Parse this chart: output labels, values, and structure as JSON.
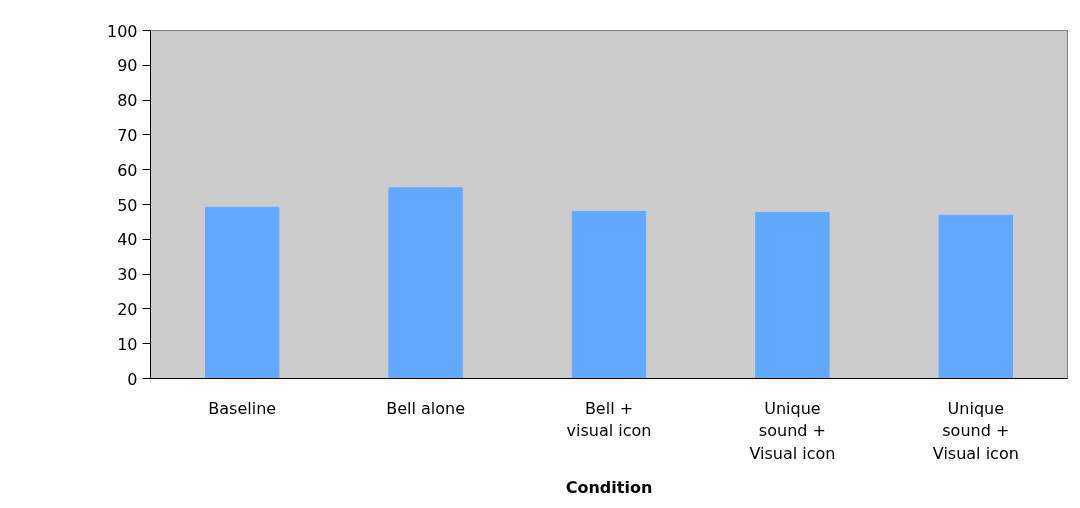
{
  "chart_data": {
    "type": "bar",
    "xlabel": "Condition",
    "categories": [
      "Baseline",
      "Bell alone",
      "Bell + visual icon",
      "Unique sound + Visual icon",
      "Unique sound + Visual icon"
    ],
    "values": [
      49.2,
      54.8,
      48.0,
      47.7,
      46.9
    ],
    "color": "#62a8ff",
    "ylim": [
      0,
      100
    ],
    "yticks": [
      0,
      10,
      20,
      30,
      40,
      50,
      60,
      70,
      80,
      90,
      100
    ],
    "grid": false
  }
}
